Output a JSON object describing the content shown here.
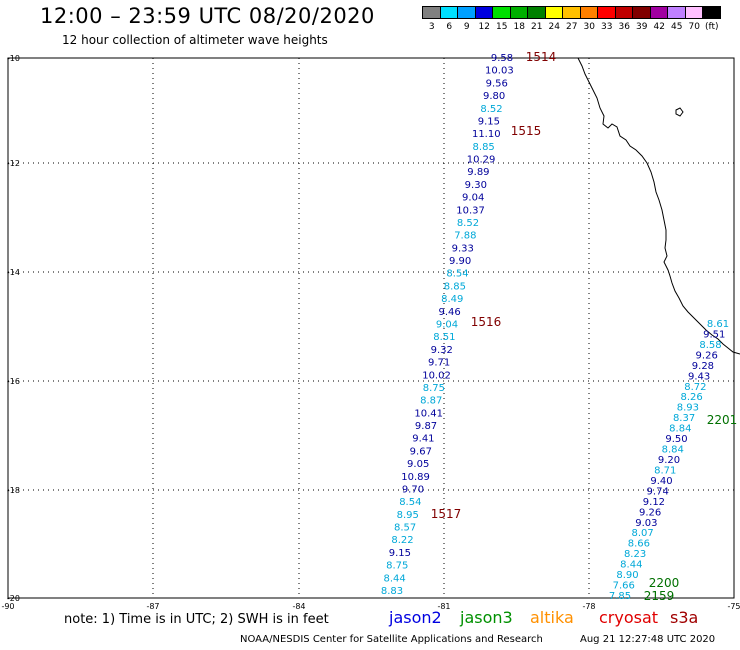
{
  "header": {
    "title": "12:00 – 23:59 UTC 08/20/2020",
    "subtitle": "12 hour collection of altimeter wave heights"
  },
  "legend": {
    "colors": [
      "#808080",
      "#00e0ff",
      "#00a0ff",
      "#0000e0",
      "#00e000",
      "#00b000",
      "#008000",
      "#ffff00",
      "#ffc000",
      "#ff8000",
      "#ff0000",
      "#c00000",
      "#800000",
      "#a000a0",
      "#c080ff",
      "#ffc0ff",
      "#000000"
    ],
    "labels": [
      "3",
      "6",
      "9",
      "12",
      "15",
      "18",
      "21",
      "24",
      "27",
      "30",
      "33",
      "36",
      "39",
      "42",
      "45",
      "70",
      "(ft)"
    ]
  },
  "map": {
    "lat_labels": [
      "-10",
      "-12",
      "-14",
      "-16",
      "-18",
      "-20"
    ],
    "lon_labels": [
      "-90",
      "-87",
      "-84",
      "-81",
      "-78",
      "-75"
    ],
    "colors": {
      "dark_blue": "#00009a",
      "light_blue": "#00a8d8",
      "time_red": "#800000",
      "time_green": "#007000"
    },
    "track1_labels": [
      "9.58",
      "10.03",
      "9.56",
      "9.80",
      "8.52",
      "9.15",
      "11.10",
      "8.85",
      "10.29",
      "9.89",
      "9.30",
      "9.04",
      "10.37",
      "8.52",
      "7.88",
      "9.33",
      "9.90",
      "8.54",
      "8.85",
      "8.49",
      "9.46",
      "9.04",
      "8.51",
      "9.32",
      "9.71",
      "10.02",
      "8.75",
      "8.87",
      "10.41",
      "9.87",
      "9.41",
      "9.67",
      "9.05",
      "10.89",
      "9.70",
      "8.54",
      "8.95",
      "8.57",
      "8.22",
      "9.15",
      "8.75",
      "8.44",
      "8.83"
    ],
    "track2_labels": [
      "8.61",
      "9.51",
      "8.58",
      "9.26",
      "9.28",
      "9.43",
      "8.72",
      "8.26",
      "8.93",
      "8.37",
      "8.84",
      "9.50",
      "8.84",
      "9.20",
      "8.71",
      "9.40",
      "9.74",
      "9.12",
      "9.26",
      "9.03",
      "8.07",
      "8.66",
      "8.23",
      "8.44",
      "8.90",
      "7.66",
      "7.85"
    ],
    "track1_times": [
      "1514",
      "1515",
      "1516",
      "1517"
    ],
    "track2_times": [
      "2201",
      "2200",
      "2159"
    ]
  },
  "footer": {
    "note": "note:  1) Time is in UTC;  2) SWH is in feet",
    "satellites": [
      {
        "name": "jason2",
        "color": "#0000e0"
      },
      {
        "name": "jason3",
        "color": "#009000"
      },
      {
        "name": "altika",
        "color": "#ff9000"
      },
      {
        "name": "cryosat",
        "color": "#e00000"
      },
      {
        "name": "s3a",
        "color": "#a00000"
      }
    ],
    "credit": "NOAA/NESDIS Center for Satellite Applications and Research",
    "timestamp": "Aug 21 12:27:48 UTC 2020"
  }
}
